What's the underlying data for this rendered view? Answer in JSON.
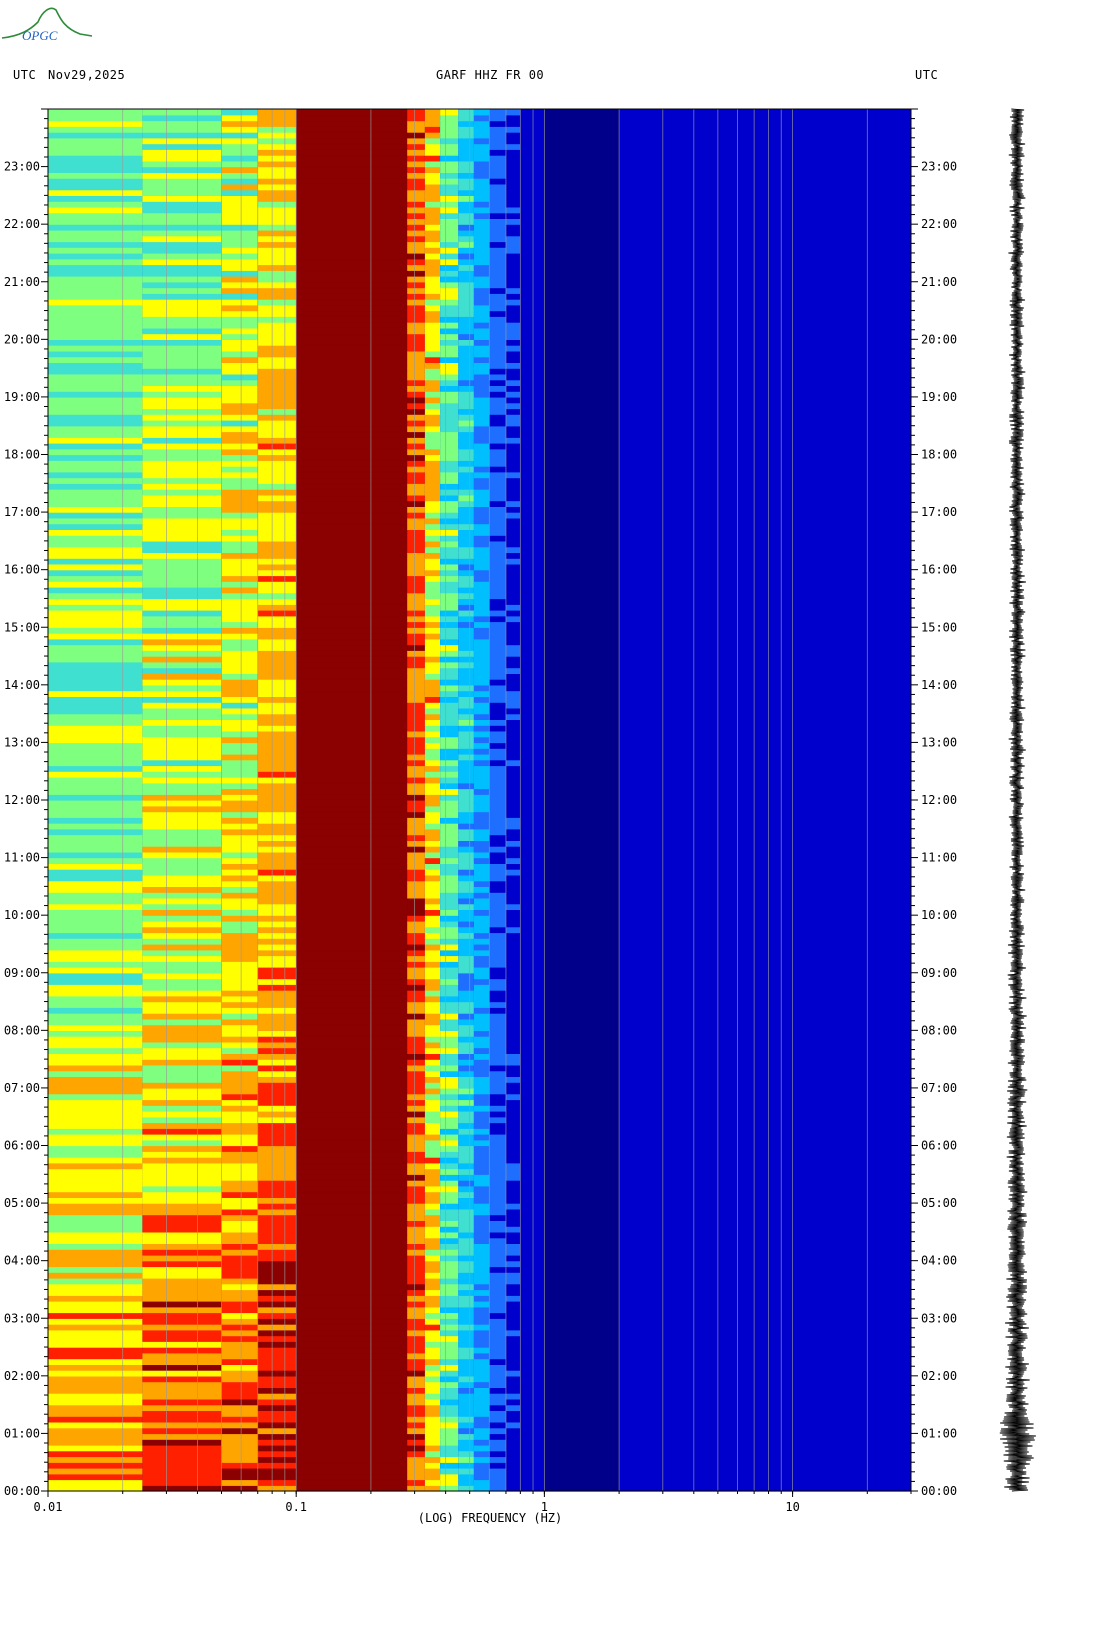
{
  "logo": {
    "text": "OPGC",
    "icon": "opgc-logo-icon"
  },
  "header": {
    "left_tz": "UTC",
    "date": "Nov29,2025",
    "station": "GARF HHZ FR 00",
    "right_tz": "UTC"
  },
  "chart_data": {
    "type": "heatmap",
    "title": "GARF HHZ FR 00",
    "xlabel": "(LOG) FREQUENCY (HZ)",
    "ylabel": "UTC",
    "x_scale": "log",
    "xlim": [
      0.01,
      30
    ],
    "x_ticks": [
      "0.01",
      "0.1",
      "1",
      "10"
    ],
    "x_tick_values": [
      0.01,
      0.1,
      1,
      10
    ],
    "ylim_hours": [
      0,
      24
    ],
    "y_ticks": [
      "00:00",
      "01:00",
      "02:00",
      "03:00",
      "04:00",
      "05:00",
      "06:00",
      "07:00",
      "08:00",
      "09:00",
      "10:00",
      "11:00",
      "12:00",
      "13:00",
      "14:00",
      "15:00",
      "16:00",
      "17:00",
      "18:00",
      "19:00",
      "20:00",
      "21:00",
      "22:00",
      "23:00"
    ],
    "colormap": [
      "#00008b",
      "#0000cd",
      "#1e6fff",
      "#00bfff",
      "#40e0d0",
      "#7fff7f",
      "#ffff00",
      "#ffa500",
      "#ff2000",
      "#8b0000"
    ],
    "power_profile_note": "",
    "grid": "vertical",
    "trace_panel": "seismogram"
  }
}
